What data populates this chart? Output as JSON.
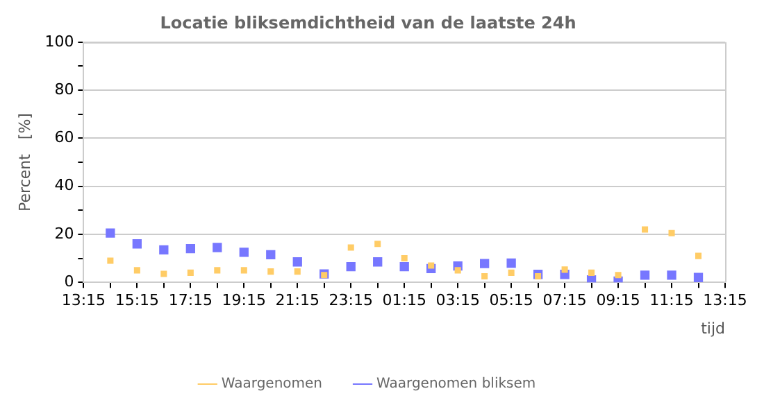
{
  "chart_data": {
    "type": "scatter",
    "title": "Locatie bliksemdichtheid van de laatste 24h",
    "xlabel": "tijd",
    "ylabel": "Percent   [%]",
    "x": [
      "--01-01T14:15",
      "--01-01T15:15",
      "--01-01T16:15",
      "--01-01T17:15",
      "--01-01T18:15",
      "--01-01T19:15",
      "--01-01T20:15",
      "--01-01T21:15",
      "--01-01T22:15",
      "--01-01T23:15",
      "--01-02T00:15",
      "--01-02T01:15",
      "--01-02T02:15",
      "--01-02T03:15",
      "--01-02T04:15",
      "--01-02T05:15",
      "--01-02T06:15",
      "--01-02T07:15",
      "--01-02T08:15",
      "--01-02T09:15",
      "--01-02T10:15",
      "--01-02T11:15",
      "--01-02T12:15"
    ],
    "series": [
      {
        "name": "Waargenomen",
        "color": "#ffcc66",
        "values": [
          9,
          5,
          3.5,
          4,
          5,
          5,
          4.5,
          4.5,
          3,
          14.5,
          16,
          10,
          7,
          5,
          2.5,
          4,
          2.5,
          5.3,
          4,
          3,
          22,
          20.5,
          11
        ]
      },
      {
        "name": "Waargenomen bliksem",
        "color": "#7777ff",
        "values": [
          20.5,
          16,
          13.5,
          14,
          14.5,
          12.5,
          11.5,
          8.5,
          3.5,
          6.5,
          8.5,
          6.5,
          5.7,
          6.8,
          7.8,
          8,
          3.3,
          3.3,
          1,
          0.5,
          3,
          3,
          2
        ]
      }
    ],
    "xlim": [
      "--01-01T13:15",
      "--01-02T13:15"
    ],
    "xticks": [
      {
        "value": "--01-01T13:15",
        "label": "13:15"
      },
      {
        "value": "--01-01T14:15",
        "label": null
      },
      {
        "value": "--01-01T15:15",
        "label": "15:15"
      },
      {
        "value": "--01-01T16:15",
        "label": null
      },
      {
        "value": "--01-01T17:15",
        "label": "17:15"
      },
      {
        "value": "--01-01T18:15",
        "label": null
      },
      {
        "value": "--01-01T19:15",
        "label": "19:15"
      },
      {
        "value": "--01-01T20:15",
        "label": null
      },
      {
        "value": "--01-01T21:15",
        "label": "21:15"
      },
      {
        "value": "--01-01T22:15",
        "label": null
      },
      {
        "value": "--01-01T23:15",
        "label": "23:15"
      },
      {
        "value": "--01-02T00:15",
        "label": null
      },
      {
        "value": "--01-02T01:15",
        "label": "01:15"
      },
      {
        "value": "--01-02T02:15",
        "label": null
      },
      {
        "value": "--01-02T03:15",
        "label": "03:15"
      },
      {
        "value": "--01-02T04:15",
        "label": null
      },
      {
        "value": "--01-02T05:15",
        "label": "05:15"
      },
      {
        "value": "--01-02T06:15",
        "label": null
      },
      {
        "value": "--01-02T07:15",
        "label": "07:15"
      },
      {
        "value": "--01-02T08:15",
        "label": null
      },
      {
        "value": "--01-02T09:15",
        "label": "09:15"
      },
      {
        "value": "--01-02T10:15",
        "label": null
      },
      {
        "value": "--01-02T11:15",
        "label": "11:15"
      },
      {
        "value": "--01-02T12:15",
        "label": null
      },
      {
        "value": "--01-02T13:15",
        "label": "13:15"
      }
    ],
    "ylim": [
      0,
      100
    ],
    "yticks": [
      0,
      {
        "value": 10,
        "label": null
      },
      20,
      {
        "value": 30,
        "label": null
      },
      40,
      {
        "value": 50,
        "label": null
      },
      60,
      {
        "value": 70,
        "label": null
      },
      80,
      {
        "value": 90,
        "label": null
      },
      100
    ],
    "grid": "y",
    "legend": "bottom",
    "marker": "square"
  }
}
